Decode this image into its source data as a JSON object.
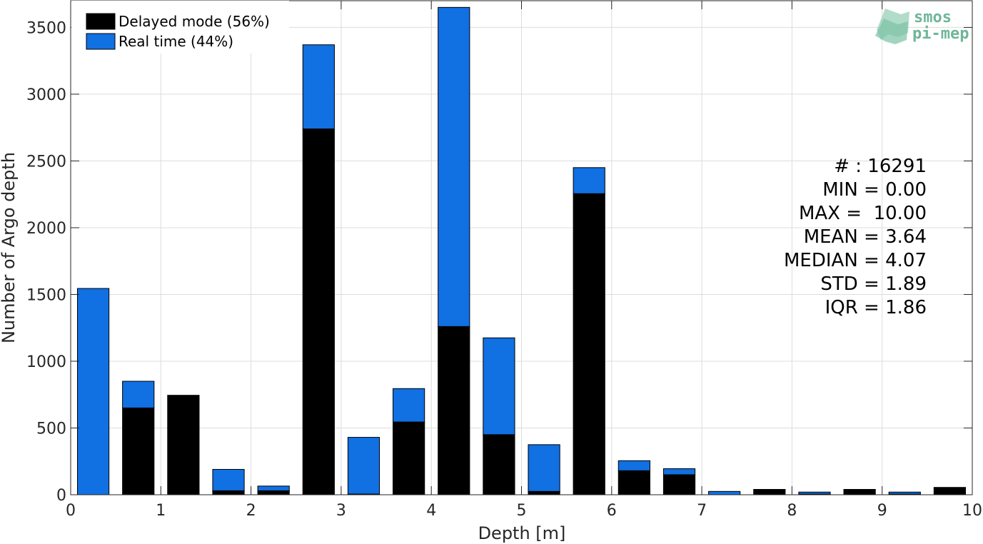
{
  "colors": {
    "delayed": "#000000",
    "realtime": "#1170e2",
    "grid": "#dcdcdc",
    "axis": "#262626",
    "logo": "#6fb69a"
  },
  "logo": {
    "line1": "smos",
    "line2": "pi-mep"
  },
  "stats": [
    "# : 16291",
    "MIN = 0.00",
    "MAX =  10.00",
    "MEAN = 3.64",
    "MEDIAN = 4.07",
    "STD = 1.89",
    "IQR = 1.86"
  ],
  "chart_data": {
    "type": "bar",
    "stacked": true,
    "xlabel": "Depth [m]",
    "ylabel": "Number of Argo depth",
    "xlim": [
      0,
      10
    ],
    "ylim": [
      0,
      3700
    ],
    "xticks": [
      0,
      1,
      2,
      3,
      4,
      5,
      6,
      7,
      8,
      9,
      10
    ],
    "yticks": [
      0,
      500,
      1000,
      1500,
      2000,
      2500,
      3000,
      3500
    ],
    "grid": true,
    "legend_position": "top-left",
    "bin_width": 0.35,
    "x": [
      0.25,
      0.75,
      1.25,
      1.75,
      2.25,
      2.75,
      3.25,
      3.75,
      4.25,
      4.75,
      5.25,
      5.75,
      6.25,
      6.75,
      7.25,
      7.75,
      8.25,
      8.75,
      9.25,
      9.75
    ],
    "series": [
      {
        "name": "Delayed mode (56%)",
        "color": "#000000",
        "values": [
          0,
          650,
          745,
          30,
          30,
          2740,
          5,
          545,
          1260,
          450,
          25,
          2255,
          180,
          150,
          0,
          40,
          5,
          40,
          5,
          55
        ]
      },
      {
        "name": "Real time (44%)",
        "color": "#1170e2",
        "values": [
          1545,
          200,
          0,
          160,
          35,
          630,
          425,
          250,
          2390,
          725,
          350,
          195,
          75,
          45,
          25,
          0,
          15,
          0,
          15,
          0
        ]
      }
    ]
  }
}
